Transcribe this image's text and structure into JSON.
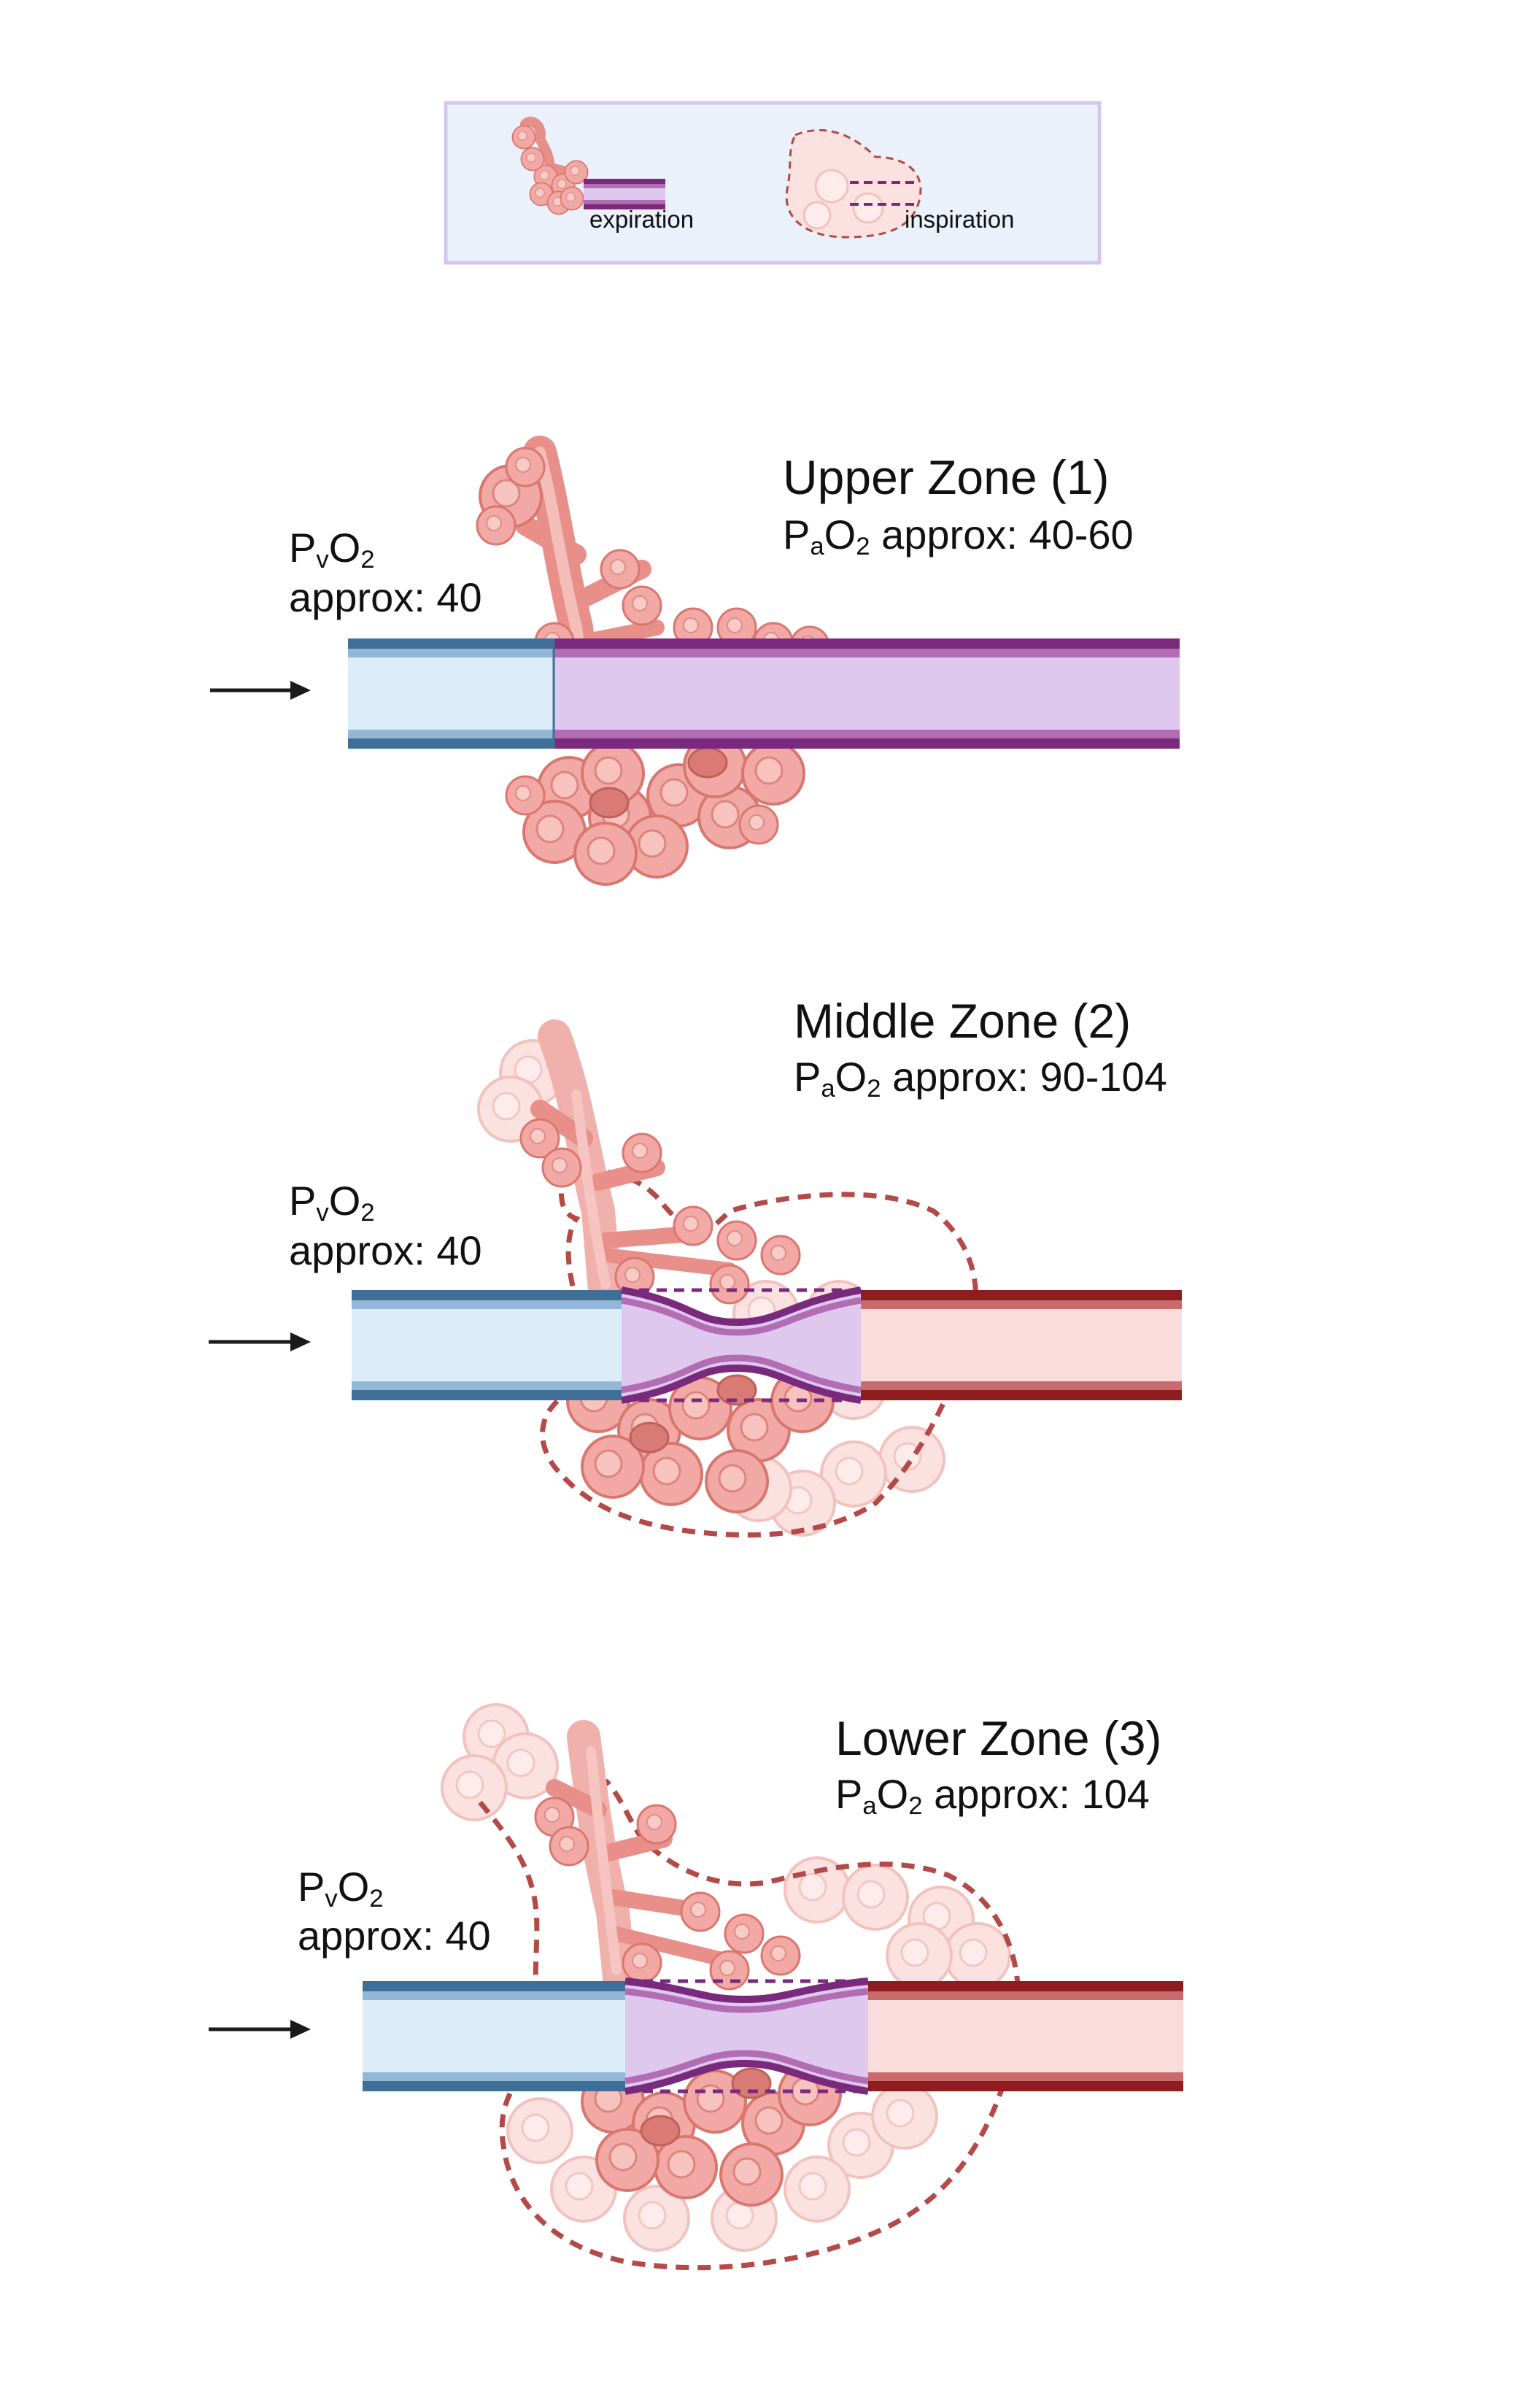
{
  "legend": {
    "expiration_label": "expiration",
    "inspiration_label": "inspiration"
  },
  "zones": [
    {
      "title": "Upper Zone (1)",
      "pao2_prefix": "P",
      "pao2_sub_a": "a",
      "pao2_mid": "O",
      "pao2_sub_2": "2",
      "pao2_value": "approx: 40-60",
      "pvo2_prefix": "P",
      "pvo2_sub_v": "v",
      "pvo2_mid": "O",
      "pvo2_sub_2": "2",
      "pvo2_value": "approx: 40"
    },
    {
      "title": "Middle Zone (2)",
      "pao2_prefix": "P",
      "pao2_sub_a": "a",
      "pao2_mid": "O",
      "pao2_sub_2": "2",
      "pao2_value": "approx: 90-104",
      "pvo2_prefix": "P",
      "pvo2_sub_v": "v",
      "pvo2_mid": "O",
      "pvo2_sub_2": "2",
      "pvo2_value": "approx: 40"
    },
    {
      "title": "Lower Zone (3)",
      "pao2_prefix": "P",
      "pao2_sub_a": "a",
      "pao2_mid": "O",
      "pao2_sub_2": "2",
      "pao2_value": "approx: 104",
      "pvo2_prefix": "P",
      "pvo2_sub_v": "v",
      "pvo2_mid": "O",
      "pvo2_sub_2": "2",
      "pvo2_value": "approx: 40"
    }
  ],
  "colors": {
    "venous_dark": "#3f6e96",
    "venous_mid": "#93b7d6",
    "venous_fill": "#dcecf8",
    "alveolar_dark": "#7a2a7d",
    "alveolar_mid": "#b16cb3",
    "alveolar_fill": "#dec8ee",
    "arterial_dark": "#8f1c1f",
    "arterial_mid": "#c96b6b",
    "arterial_fill": "#fbdcdc",
    "lung_tissue": "#f2a9a5",
    "lung_outline": "#d9776f",
    "inspiration_dash": "#b44a48",
    "legend_bg": "#ebf1fb",
    "legend_border": "#d6c6ec",
    "arrow": "#1a1a1a"
  },
  "icons": {
    "lung": "lung-alveoli-icon",
    "arrow": "flow-arrow-icon"
  }
}
